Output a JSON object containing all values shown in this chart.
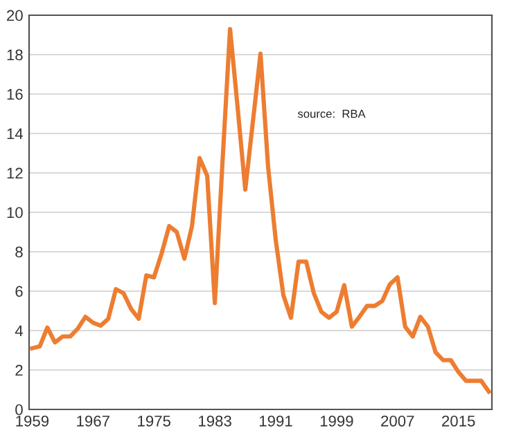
{
  "chart_data": {
    "type": "line",
    "x": [
      1959,
      1960,
      1961,
      1962,
      1963,
      1964,
      1965,
      1966,
      1967,
      1968,
      1969,
      1970,
      1971,
      1972,
      1973,
      1974,
      1975,
      1976,
      1977,
      1978,
      1979,
      1980,
      1981,
      1982,
      1983,
      1984,
      1985,
      1986,
      1987,
      1988,
      1989,
      1990,
      1991,
      1992,
      1993,
      1994,
      1995,
      1996,
      1997,
      1998,
      1999,
      2000,
      2001,
      2002,
      2003,
      2004,
      2005,
      2006,
      2007,
      2008,
      2009,
      2010,
      2011,
      2012,
      2013,
      2014,
      2015,
      2016,
      2017,
      2018,
      2019
    ],
    "series": [
      {
        "color": "#ed7d31",
        "values": [
          3.1,
          3.2,
          4.15,
          3.4,
          3.7,
          3.7,
          4.1,
          4.7,
          4.4,
          4.25,
          4.6,
          6.1,
          5.9,
          5.1,
          4.6,
          6.8,
          6.7,
          7.9,
          9.3,
          9.0,
          7.65,
          9.3,
          12.75,
          11.85,
          5.4,
          12.5,
          19.3,
          15.3,
          11.15,
          14.6,
          18.05,
          12.3,
          8.6,
          5.8,
          4.65,
          7.5,
          7.5,
          5.9,
          4.95,
          4.65,
          4.95,
          6.3,
          4.2,
          4.7,
          5.25,
          5.25,
          5.5,
          6.35,
          6.7,
          4.2,
          3.7,
          4.7,
          4.2,
          2.9,
          2.5,
          2.5,
          1.9,
          1.45,
          1.45,
          1.45,
          0.9
        ]
      }
    ],
    "xlim": [
      1958.6,
      2019.4
    ],
    "xticks": [
      1959,
      1967,
      1975,
      1983,
      1991,
      1999,
      2007,
      2015
    ],
    "ylim": [
      0,
      20
    ],
    "yticks": [
      0,
      2,
      4,
      6,
      8,
      10,
      12,
      14,
      16,
      18,
      20
    ],
    "grid": "y",
    "legend": false,
    "marker": "none",
    "line_style": "solid",
    "annotations": [
      "source:  RBA"
    ]
  }
}
